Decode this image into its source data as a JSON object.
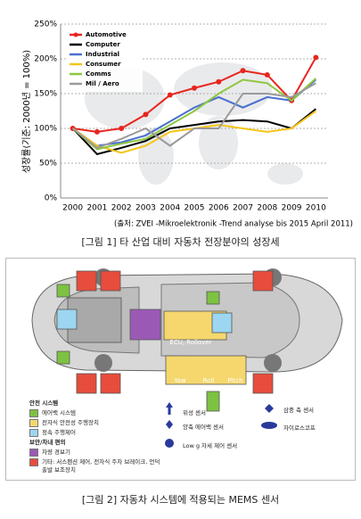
{
  "chart_data": {
    "type": "line",
    "y_label": "성장률(기준: 2000년 = 100%)",
    "categories": [
      "2000",
      "2001",
      "2002",
      "2003",
      "2004",
      "2005",
      "2006",
      "2007",
      "2008",
      "2009",
      "2010"
    ],
    "series": [
      {
        "name": "Automotive",
        "color": "#e8251f",
        "marker": true,
        "values": [
          100,
          95,
          100,
          120,
          148,
          158,
          167,
          183,
          177,
          140,
          202
        ]
      },
      {
        "name": "Computer",
        "color": "#000000",
        "marker": false,
        "values": [
          100,
          63,
          72,
          82,
          100,
          105,
          110,
          112,
          110,
          100,
          128
        ]
      },
      {
        "name": "Industrial",
        "color": "#4a6fd0",
        "marker": false,
        "values": [
          100,
          75,
          80,
          90,
          110,
          130,
          145,
          130,
          145,
          140,
          170
        ]
      },
      {
        "name": "Consumer",
        "color": "#f5c518",
        "marker": false,
        "values": [
          100,
          75,
          65,
          75,
          95,
          100,
          105,
          100,
          95,
          100,
          125
        ]
      },
      {
        "name": "Comms",
        "color": "#8dc63f",
        "marker": false,
        "values": [
          100,
          70,
          78,
          85,
          105,
          125,
          150,
          170,
          165,
          140,
          172
        ]
      },
      {
        "name": "Mil / Aero",
        "color": "#9a9a9a",
        "marker": false,
        "values": [
          100,
          72,
          85,
          100,
          75,
          100,
          100,
          150,
          150,
          145,
          165
        ]
      }
    ],
    "ylim": [
      0,
      250
    ],
    "yticks": [
      {
        "value": 0,
        "label": "0%"
      },
      {
        "value": 50,
        "label": "50%"
      },
      {
        "value": 100,
        "label": "100%"
      },
      {
        "value": 150,
        "label": "150%"
      },
      {
        "value": 200,
        "label": "200%"
      },
      {
        "value": 250,
        "label": "250%"
      }
    ],
    "grid": true,
    "legend": "upper-left"
  },
  "figure1": {
    "source": "(출처: ZVEI -Mikroelektronik -Trend analyse bis 2015 April 2011)",
    "caption": "[그림 1] 타 산업 대비 자동차 전장분야의 성장세"
  },
  "figure2": {
    "car_labels": [
      "ECU, Rollover",
      "Yaw",
      "Roll",
      "Pitch"
    ],
    "legend_groups": [
      {
        "title": "안전 시스템",
        "items": [
          "에어백 시스템",
          "전자식 안전성 주행장치",
          "정속 주행제어"
        ]
      },
      {
        "title": "보안/차내 편의",
        "items": [
          "차량 경보기",
          "기타: 서스펜션 제어, 전자식 주차 브레이크, 언덕 출발 보조장치"
        ]
      }
    ],
    "sensor_types": [
      "위성 센서",
      "양축 에어백 센서",
      "Low g 자세 제어 센서",
      "삼중 축 센서",
      "자이로스코프"
    ],
    "caption": "[그림 2] 자동차 시스템에 적용되는 MEMS 센서"
  }
}
